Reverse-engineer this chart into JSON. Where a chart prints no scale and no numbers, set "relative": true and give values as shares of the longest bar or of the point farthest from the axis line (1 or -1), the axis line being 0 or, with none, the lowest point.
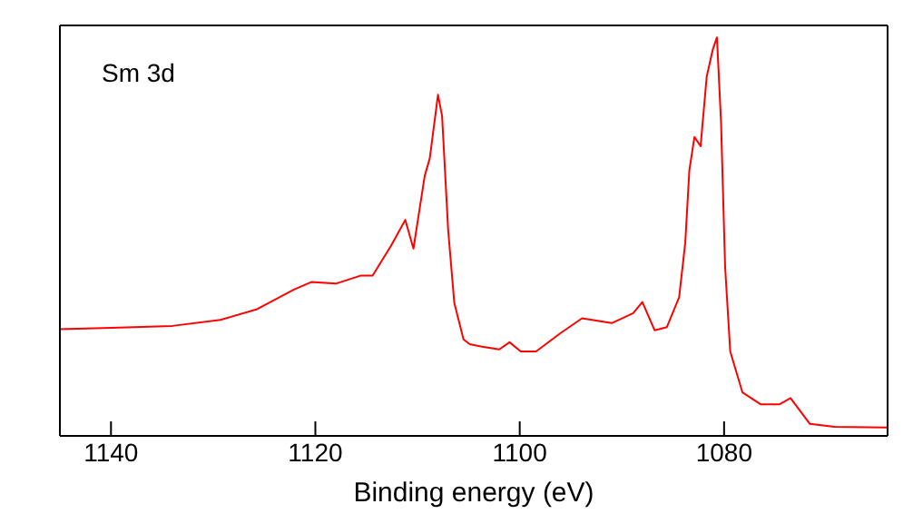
{
  "chart_data": {
    "type": "line",
    "relative": true,
    "xlabel": "Binding energy (eV)",
    "annotations": [
      "Sm 3d"
    ],
    "xlim": [
      1145,
      1064
    ],
    "xticks": [
      1140,
      1120,
      1100,
      1080
    ],
    "marker": "none",
    "line_style": "solid",
    "series": [
      {
        "color": "#ff0000",
        "x": [
          1145,
          1140,
          1134.0,
          1129.3,
          1125.7,
          1122.1,
          1120.4,
          1118.0,
          1115.6,
          1114.4,
          1112.6,
          1111.2,
          1110.4,
          1109.3,
          1108.8,
          1108.0,
          1107.6,
          1107.0,
          1106.4,
          1105.5,
          1104.9,
          1103.7,
          1102.0,
          1101.0,
          1099.9,
          1098.4,
          1096.0,
          1093.9,
          1091.0,
          1088.9,
          1088.0,
          1086.8,
          1085.6,
          1084.4,
          1083.8,
          1083.4,
          1082.9,
          1082.3,
          1081.7,
          1081.1,
          1080.7,
          1080.3,
          1079.9,
          1079.4,
          1078.2,
          1076.4,
          1074.6,
          1073.5,
          1071.6,
          1069.2,
          1064
        ],
        "values": [
          0.268,
          0.271,
          0.276,
          0.291,
          0.318,
          0.367,
          0.386,
          0.382,
          0.402,
          0.402,
          0.477,
          0.542,
          0.47,
          0.652,
          0.697,
          0.856,
          0.803,
          0.515,
          0.333,
          0.242,
          0.23,
          0.224,
          0.217,
          0.235,
          0.212,
          0.212,
          0.258,
          0.295,
          0.283,
          0.308,
          0.336,
          0.265,
          0.273,
          0.348,
          0.485,
          0.667,
          0.75,
          0.727,
          0.902,
          0.97,
          1.0,
          0.788,
          0.424,
          0.212,
          0.109,
          0.079,
          0.079,
          0.095,
          0.03,
          0.023,
          0.021
        ]
      }
    ]
  }
}
